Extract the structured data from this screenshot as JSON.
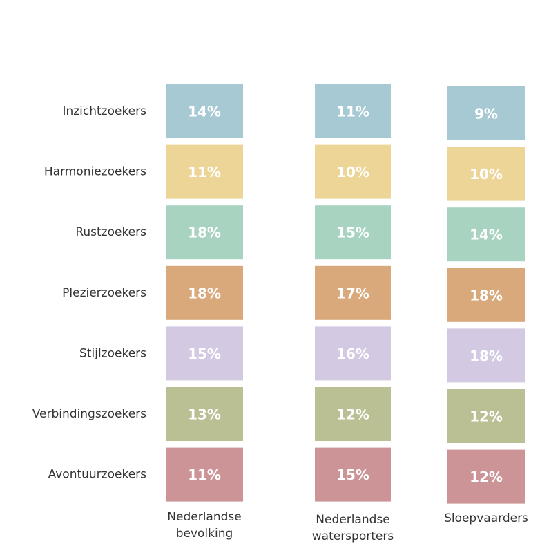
{
  "rows": [
    {
      "label": "Inzichtzoekers",
      "color": "#a6c9d3"
    },
    {
      "label": "Harmoniezoekers",
      "color": "#ecd597"
    },
    {
      "label": "Rustzoekers",
      "color": "#a8d3c0"
    },
    {
      "label": "Plezierzoekers",
      "color": "#d9a97c"
    },
    {
      "label": "Stijlzoekers",
      "color": "#d3c9e2"
    },
    {
      "label": "Verbindingszoekers",
      "color": "#bac094"
    },
    {
      "label": "Avontuurzoekers",
      "color": "#cc9497"
    }
  ],
  "columns": [
    {
      "label": [
        "Nederlandse",
        "bevolking"
      ],
      "values": [
        "14%",
        "11%",
        "18%",
        "18%",
        "15%",
        "13%",
        "11%"
      ]
    },
    {
      "label": [
        "Nederlandse",
        "watersporters"
      ],
      "values": [
        "11%",
        "10%",
        "15%",
        "17%",
        "16%",
        "12%",
        "15%"
      ]
    },
    {
      "label": [
        "Sloepvaarders"
      ],
      "values": [
        "9%",
        "10%",
        "14%",
        "18%",
        "18%",
        "12%",
        "12%"
      ]
    }
  ]
}
